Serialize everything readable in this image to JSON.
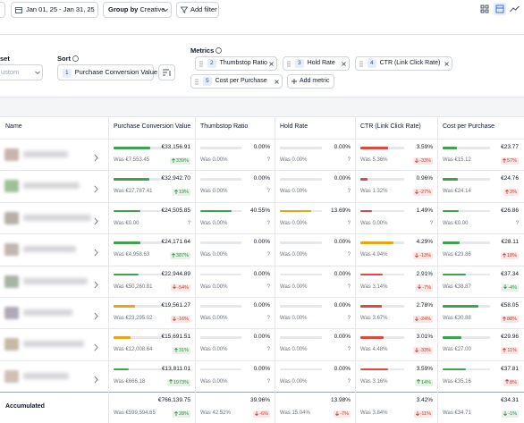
{
  "toolbar": {
    "date": "Jan 01, 25 - Jan 31, 25",
    "group_by": "Group by",
    "group_value": "Creative",
    "add_filter": "Add filter"
  },
  "controls": {
    "preset_label": "set",
    "preset_value": "ustom",
    "sort_label": "Sort",
    "sort_index": 1,
    "sort_value": "Purchase Conversion Value",
    "metrics_label": "Metrics",
    "metrics": [
      {
        "index": 2,
        "label": "Thumbstop Ratio"
      },
      {
        "index": 3,
        "label": "Hold Rate"
      },
      {
        "index": 4,
        "label": "CTR (Link Click Rate)"
      },
      {
        "index": 5,
        "label": "Cost per Purchase"
      }
    ],
    "add_metric": "Add metric"
  },
  "table": {
    "name_header": "Name",
    "columns": [
      "Purchase Conversion Value",
      "Thumbstop Ratio",
      "Hold Rate",
      "CTR (Link Click Rate)",
      "Cost per Purchase"
    ],
    "rows": [
      [
        {
          "value": "€33,156.91",
          "was": "Was €7,553.45",
          "change": "339%",
          "bar": "#3da34f",
          "badge": "#2f8f3f"
        },
        {
          "value": "0.00%",
          "was": "Was 0.00%",
          "change": "?"
        },
        {
          "value": "0.00%",
          "was": "Was 0.00%",
          "change": "?"
        },
        {
          "value": "3.59%",
          "was": "Was 5.36%",
          "change": "-33%",
          "bar": "#e0473f",
          "badge": "#d2372f"
        },
        {
          "value": "€23.77",
          "was": "Was €15.12",
          "change": "57%",
          "bar": "#3da34f",
          "badge": "#d2372f"
        }
      ],
      [
        {
          "value": "€32,942.70",
          "was": "Was €27,787.41",
          "change": "19%",
          "bar": "#3da34f",
          "badge": "#2f8f3f"
        },
        {
          "value": "0.00%",
          "was": "Was 0.00%",
          "change": "?"
        },
        {
          "value": "0.00%",
          "was": "Was 0.00%",
          "change": "?"
        },
        {
          "value": "0.96%",
          "was": "Was 1.32%",
          "change": "-27%",
          "bar": "#e0473f",
          "badge": "#d2372f"
        },
        {
          "value": "€24.76",
          "was": "Was €24.14",
          "change": "3%",
          "bar": "#3da34f",
          "badge": "#d2372f"
        }
      ],
      [
        {
          "value": "€24,505.85",
          "was": "Was €0.00",
          "change": "?",
          "bar": "#3da34f"
        },
        {
          "value": "40.55%",
          "was": "Was 0.00%",
          "change": "?",
          "bar": "#3da34f"
        },
        {
          "value": "13.69%",
          "was": "Was 0.00%",
          "change": "?",
          "bar": "#e8a317"
        },
        {
          "value": "1.49%",
          "was": "Was 0.00%",
          "change": "?",
          "bar": "#e0473f"
        },
        {
          "value": "€26.86",
          "was": "Was €0.00",
          "change": "?",
          "bar": "#3da34f"
        }
      ],
      [
        {
          "value": "€24,171.64",
          "was": "Was €4,958.63",
          "change": "387%",
          "bar": "#3da34f",
          "badge": "#2f8f3f"
        },
        {
          "value": "0.00%",
          "was": "Was 0.00%",
          "change": "?"
        },
        {
          "value": "0.00%",
          "was": "Was 0.00%",
          "change": "?"
        },
        {
          "value": "4.29%",
          "was": "Was 4.94%",
          "change": "-13%",
          "bar": "#e8a317",
          "badge": "#d2372f"
        },
        {
          "value": "€28.11",
          "was": "Was €23.86",
          "change": "18%",
          "bar": "#3da34f",
          "badge": "#d2372f"
        }
      ],
      [
        {
          "value": "€22,944.89",
          "was": "Was €50,260.81",
          "change": "-54%",
          "bar": "#3da34f",
          "badge": "#d2372f"
        },
        {
          "value": "0.00%",
          "was": "Was 0.00%",
          "change": "?"
        },
        {
          "value": "0.00%",
          "was": "Was 0.00%",
          "change": "?"
        },
        {
          "value": "2.91%",
          "was": "Was 3.14%",
          "change": "-7%",
          "bar": "#e0473f",
          "badge": "#d2372f"
        },
        {
          "value": "€37.34",
          "was": "Was €38.87",
          "change": "-4%",
          "bar": "#3da34f",
          "badge": "#2f8f3f"
        }
      ],
      [
        {
          "value": "€19,561.27",
          "was": "Was €23,295.02",
          "change": "-16%",
          "bar": "#e8a317",
          "badge": "#d2372f"
        },
        {
          "value": "0.00%",
          "was": "Was 0.00%",
          "change": "?"
        },
        {
          "value": "0.00%",
          "was": "Was 0.00%",
          "change": "?"
        },
        {
          "value": "2.78%",
          "was": "Was 3.67%",
          "change": "-24%",
          "bar": "#e0473f",
          "badge": "#d2372f"
        },
        {
          "value": "€58.05",
          "was": "Was €30.88",
          "change": "88%",
          "bar": "#3da34f",
          "badge": "#d2372f"
        }
      ],
      [
        {
          "value": "€15,691.51",
          "was": "Was €12,008.64",
          "change": "31%",
          "bar": "#e8a317",
          "badge": "#2f8f3f"
        },
        {
          "value": "0.00%",
          "was": "Was 0.00%",
          "change": "?"
        },
        {
          "value": "0.00%",
          "was": "Was 0.00%",
          "change": "?"
        },
        {
          "value": "3.01%",
          "was": "Was 4.48%",
          "change": "-33%",
          "bar": "#e0473f",
          "badge": "#d2372f"
        },
        {
          "value": "€29.96",
          "was": "Was €27.00",
          "change": "11%",
          "bar": "#3da34f",
          "badge": "#d2372f"
        }
      ],
      [
        {
          "value": "€13,811.01",
          "was": "Was €666.18",
          "change": "1973%",
          "bar": "#3da34f",
          "badge": "#2f8f3f"
        },
        {
          "value": "0.00%",
          "was": "Was 0.00%",
          "change": "?"
        },
        {
          "value": "0.00%",
          "was": "Was 0.00%",
          "change": "?"
        },
        {
          "value": "3.59%",
          "was": "Was 3.16%",
          "change": "14%",
          "bar": "#e0473f",
          "badge": "#2f8f3f"
        },
        {
          "value": "€37.81",
          "was": "Was €35.16",
          "change": "8%",
          "bar": "#3da34f",
          "badge": "#d2372f"
        }
      ]
    ],
    "total": {
      "label": "Accumulated",
      "cells": [
        {
          "value": "€766,139.75",
          "was": "Was €599,594.65",
          "change": "28%",
          "badge": "#2f8f3f"
        },
        {
          "value": "39.96%",
          "was": "Was 42.52%",
          "change": "-6%",
          "badge": "#d2372f"
        },
        {
          "value": "13.98%",
          "was": "Was 15.04%",
          "change": "-7%",
          "badge": "#d2372f"
        },
        {
          "value": "3.42%",
          "was": "Was 3.84%",
          "change": "-11%",
          "badge": "#d2372f"
        },
        {
          "value": "€34.31",
          "was": "Was €34.71",
          "change": "-1%",
          "badge": "#2f8f3f"
        }
      ]
    }
  }
}
